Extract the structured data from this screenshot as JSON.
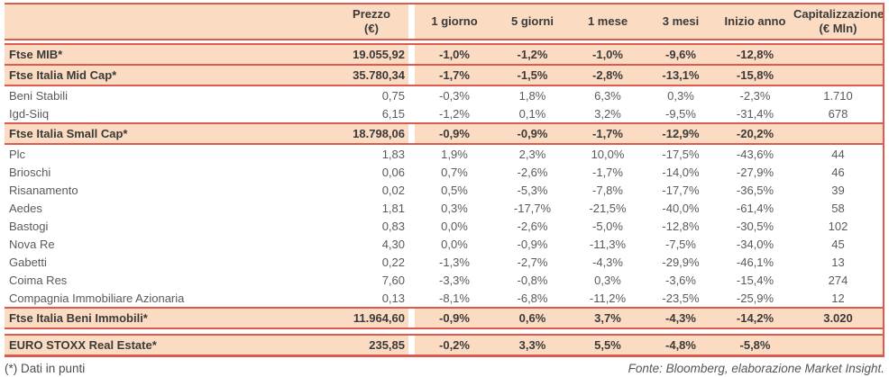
{
  "colors": {
    "accent_red": "#df5a4e",
    "row_highlight": "#fbdcc2"
  },
  "table": {
    "header": {
      "name": "",
      "prezzo": {
        "line1": "Prezzo",
        "line2": "(€)"
      },
      "one_day": "1 giorno",
      "five_days": "5 giorni",
      "one_month": "1 mese",
      "three_months": "3 mesi",
      "ytd": "Inizio anno",
      "cap": {
        "line1": "Capitalizzazione",
        "line2": "(€ Mln)"
      }
    },
    "sections": [
      {
        "rows": [
          {
            "type": "index",
            "name": "Ftse MIB*",
            "prezzo": "19.055,92",
            "one_day": "-1,0%",
            "five_days": "-1,2%",
            "one_month": "-1,0%",
            "three_months": "-9,6%",
            "ytd": "-12,8%",
            "cap": ""
          },
          {
            "type": "index",
            "name": "Ftse Italia Mid Cap*",
            "prezzo": "35.780,34",
            "one_day": "-1,7%",
            "five_days": "-1,5%",
            "one_month": "-2,8%",
            "three_months": "-13,1%",
            "ytd": "-15,8%",
            "cap": ""
          },
          {
            "type": "stock",
            "name": "Beni Stabili",
            "prezzo": "0,75",
            "one_day": "-0,3%",
            "five_days": "1,8%",
            "one_month": "6,3%",
            "three_months": "0,3%",
            "ytd": "-2,3%",
            "cap": "1.710"
          },
          {
            "type": "stock",
            "name": "Igd-Siiq",
            "prezzo": "6,15",
            "one_day": "-1,2%",
            "five_days": "0,1%",
            "one_month": "3,2%",
            "three_months": "-9,5%",
            "ytd": "-31,4%",
            "cap": "678"
          },
          {
            "type": "index",
            "name": "Ftse Italia Small Cap*",
            "prezzo": "18.798,06",
            "one_day": "-0,9%",
            "five_days": "-0,9%",
            "one_month": "-1,7%",
            "three_months": "-12,9%",
            "ytd": "-20,2%",
            "cap": ""
          },
          {
            "type": "stock",
            "name": "Plc",
            "prezzo": "1,83",
            "one_day": "1,9%",
            "five_days": "2,3%",
            "one_month": "10,0%",
            "three_months": "-17,5%",
            "ytd": "-43,6%",
            "cap": "44"
          },
          {
            "type": "stock",
            "name": "Brioschi",
            "prezzo": "0,06",
            "one_day": "0,7%",
            "five_days": "-2,6%",
            "one_month": "-1,7%",
            "three_months": "-14,0%",
            "ytd": "-27,9%",
            "cap": "46"
          },
          {
            "type": "stock",
            "name": "Risanamento",
            "prezzo": "0,02",
            "one_day": "0,5%",
            "five_days": "-5,3%",
            "one_month": "-7,8%",
            "three_months": "-17,7%",
            "ytd": "-36,5%",
            "cap": "39"
          },
          {
            "type": "stock",
            "name": "Aedes",
            "prezzo": "1,81",
            "one_day": "0,3%",
            "five_days": "-17,7%",
            "one_month": "-21,5%",
            "three_months": "-40,0%",
            "ytd": "-61,4%",
            "cap": "58"
          },
          {
            "type": "stock",
            "name": "Bastogi",
            "prezzo": "0,83",
            "one_day": "0,0%",
            "five_days": "-2,6%",
            "one_month": "-5,0%",
            "three_months": "-12,8%",
            "ytd": "-30,5%",
            "cap": "102"
          },
          {
            "type": "stock",
            "name": "Nova Re",
            "prezzo": "4,30",
            "one_day": "0,0%",
            "five_days": "-0,9%",
            "one_month": "-11,3%",
            "three_months": "-7,5%",
            "ytd": "-34,0%",
            "cap": "45"
          },
          {
            "type": "stock",
            "name": "Gabetti",
            "prezzo": "0,22",
            "one_day": "-1,3%",
            "five_days": "-2,7%",
            "one_month": "-4,3%",
            "three_months": "-29,9%",
            "ytd": "-46,1%",
            "cap": "13"
          },
          {
            "type": "stock",
            "name": "Coima Res",
            "prezzo": "7,60",
            "one_day": "-3,3%",
            "five_days": "-0,8%",
            "one_month": "0,3%",
            "three_months": "-3,6%",
            "ytd": "-15,4%",
            "cap": "274"
          },
          {
            "type": "stock",
            "name": "Compagnia Immobiliare Azionaria",
            "prezzo": "0,13",
            "one_day": "-8,1%",
            "five_days": "-6,8%",
            "one_month": "-11,2%",
            "three_months": "-23,5%",
            "ytd": "-25,9%",
            "cap": "12"
          },
          {
            "type": "index",
            "name": "Ftse Italia Beni Immobili*",
            "prezzo": "11.964,60",
            "one_day": "-0,9%",
            "five_days": "0,6%",
            "one_month": "3,7%",
            "three_months": "-4,3%",
            "ytd": "-14,2%",
            "cap": "3.020"
          }
        ]
      },
      {
        "rows": [
          {
            "type": "index",
            "name": "EURO STOXX Real Estate*",
            "prezzo": "235,85",
            "one_day": "-0,2%",
            "five_days": "3,3%",
            "one_month": "5,5%",
            "three_months": "-4,8%",
            "ytd": "-5,8%",
            "cap": ""
          }
        ]
      }
    ]
  },
  "footer": {
    "note": "(*) Dati in punti",
    "source": "Fonte: Bloomberg, elaborazione Market Insight."
  }
}
